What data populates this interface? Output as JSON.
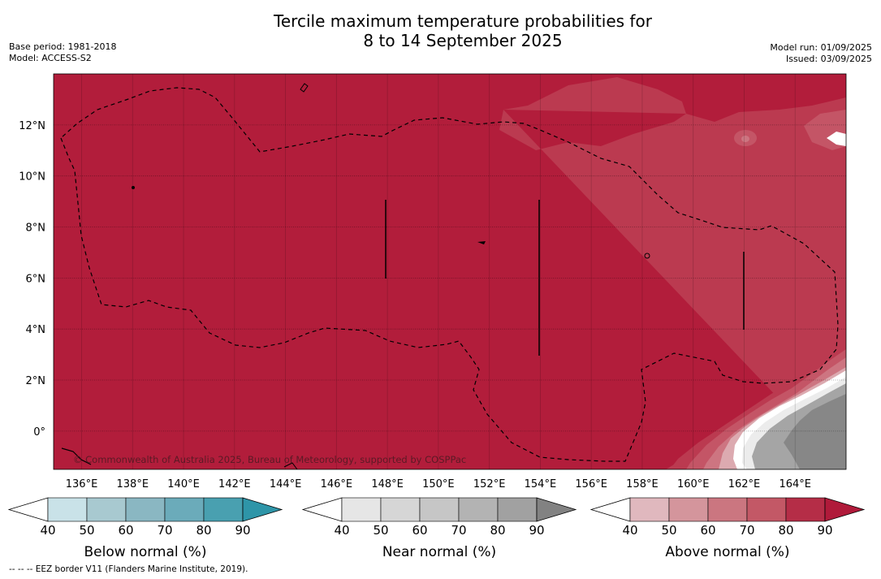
{
  "title_line1": "Tercile maximum temperature probabilities for",
  "title_line2": "8 to 14 September 2025",
  "meta_left": [
    "Base period: 1981-2018",
    "Model: ACCESS-S2"
  ],
  "meta_right": [
    "Model run: 01/09/2025",
    "Issued: 03/09/2025"
  ],
  "copyright": "© Commonwealth of Australia 2025, Bureau of Meteorology, supported by COSPPac",
  "footnote": "--  --  -- EEZ border V11 (Flanders Marine Institute, 2019).",
  "map": {
    "lon_ticks": [
      "136°E",
      "138°E",
      "140°E",
      "142°E",
      "144°E",
      "146°E",
      "148°E",
      "150°E",
      "152°E",
      "154°E",
      "156°E",
      "158°E",
      "160°E",
      "162°E",
      "164°E"
    ],
    "lat_ticks": [
      "12°N",
      "10°N",
      "8°N",
      "6°N",
      "4°N",
      "2°N",
      "0°"
    ],
    "lon_range": [
      134.9,
      166.0
    ],
    "lat_range": [
      -1.5,
      14.0
    ]
  },
  "legends": [
    {
      "label": "Below normal (%)",
      "ticks": [
        "40",
        "50",
        "60",
        "70",
        "80",
        "90"
      ],
      "colors": [
        "#ffffff",
        "#c9e2e8",
        "#a8c9d0",
        "#8ab7c2",
        "#6babba",
        "#49a0b0",
        "#2e95a8"
      ]
    },
    {
      "label": "Near normal (%)",
      "ticks": [
        "40",
        "50",
        "60",
        "70",
        "80",
        "90"
      ],
      "colors": [
        "#ffffff",
        "#e6e6e6",
        "#d6d6d6",
        "#c6c6c6",
        "#b3b3b3",
        "#a1a1a1",
        "#828282"
      ]
    },
    {
      "label": "Above normal (%)",
      "ticks": [
        "40",
        "50",
        "60",
        "70",
        "80",
        "90"
      ],
      "colors": [
        "#ffffff",
        "#e0b8be",
        "#d4959c",
        "#cb7680",
        "#c35866",
        "#b52d47",
        "#b01a3a"
      ]
    }
  ],
  "colors": {
    "above_90": "#b21d3b",
    "above_80": "#bb3a50",
    "above_70": "#c45566",
    "above_60": "#cd7581",
    "above_50": "#dcaab0",
    "near_40": "#ececec",
    "near_80": "#a5a5a5",
    "near_90": "#878787"
  }
}
